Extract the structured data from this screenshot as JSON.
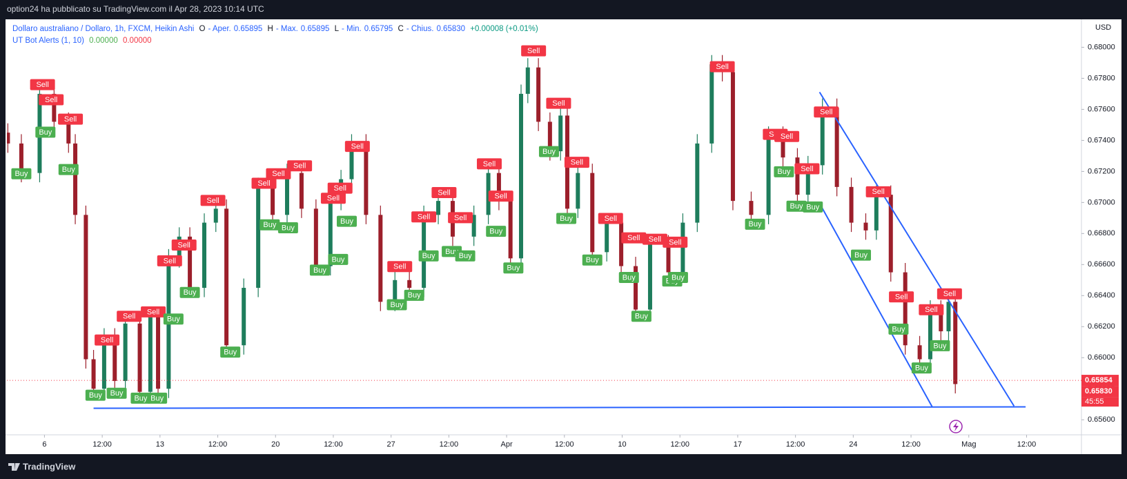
{
  "header": {
    "text": "option24 ha pubblicato su TradingView.com il Apr 28, 2023 10:14 UTC"
  },
  "legend": {
    "symbol": "Dollaro australiano / Dollaro, 1h, FXCM, Heikin Ashi",
    "ohlc": [
      {
        "key": "O",
        "name": "- Aper.",
        "value": "0.65895"
      },
      {
        "key": "H",
        "name": "- Max.",
        "value": "0.65895"
      },
      {
        "key": "L",
        "name": "- Min.",
        "value": "0.65795"
      },
      {
        "key": "C",
        "name": "- Chius.",
        "value": "0.65830"
      }
    ],
    "change": "+0.00008 (+0.01%)"
  },
  "indicator": {
    "name": "UT Bot Alerts (1, 10)",
    "values": [
      "0.00000",
      "0.00000"
    ]
  },
  "footer": {
    "brand": "TradingView"
  },
  "chart_data": {
    "type": "candlestick",
    "currency": "USD",
    "up_color": "#1e7d5c",
    "down_color": "#9c1f2b",
    "grid": false,
    "xlim": [
      -39,
      1077
    ],
    "ylim": [
      0.65503,
      0.6818
    ],
    "xticks": [
      {
        "value": 0,
        "label": "6"
      },
      {
        "value": 60,
        "label": "12:00"
      },
      {
        "value": 120,
        "label": "13"
      },
      {
        "value": 180,
        "label": "12:00"
      },
      {
        "value": 240,
        "label": "20"
      },
      {
        "value": 300,
        "label": "12:00"
      },
      {
        "value": 360,
        "label": "27"
      },
      {
        "value": 420,
        "label": "12:00"
      },
      {
        "value": 480,
        "label": "Apr"
      },
      {
        "value": 540,
        "label": "12:00"
      },
      {
        "value": 600,
        "label": "10"
      },
      {
        "value": 660,
        "label": "12:00"
      },
      {
        "value": 720,
        "label": "17"
      },
      {
        "value": 780,
        "label": "12:00"
      },
      {
        "value": 840,
        "label": "24"
      },
      {
        "value": 900,
        "label": "12:00"
      },
      {
        "value": 960,
        "label": "Mag"
      },
      {
        "value": 1020,
        "label": "12:00"
      }
    ],
    "yticks": [
      {
        "value": 0.656,
        "label": "0.65600"
      },
      {
        "value": 0.658,
        "label": "0.65800"
      },
      {
        "value": 0.66,
        "label": "0.66000"
      },
      {
        "value": 0.662,
        "label": "0.66200"
      },
      {
        "value": 0.664,
        "label": "0.66400"
      },
      {
        "value": 0.666,
        "label": "0.66600"
      },
      {
        "value": 0.668,
        "label": "0.66800"
      },
      {
        "value": 0.67,
        "label": "0.67000"
      },
      {
        "value": 0.672,
        "label": "0.67200"
      },
      {
        "value": 0.674,
        "label": "0.67400"
      },
      {
        "value": 0.676,
        "label": "0.67600"
      },
      {
        "value": 0.678,
        "label": "0.67800"
      },
      {
        "value": 0.68,
        "label": "0.68000"
      }
    ],
    "x": [
      -38,
      -24,
      -5,
      10,
      25,
      32,
      43,
      51,
      62,
      73,
      84,
      99,
      110,
      118,
      129,
      140,
      151,
      166,
      178,
      189,
      207,
      222,
      237,
      252,
      267,
      282,
      297,
      308,
      319,
      334,
      349,
      364,
      379,
      394,
      409,
      424,
      446,
      461,
      472,
      484,
      495,
      502,
      513,
      525,
      536,
      543,
      554,
      569,
      584,
      599,
      614,
      629,
      648,
      663,
      678,
      693,
      704,
      715,
      734,
      752,
      767,
      782,
      793,
      808,
      823,
      838,
      853,
      864,
      879,
      894,
      909,
      920,
      931,
      939,
      946
    ],
    "open": [
      0.6745,
      0.6738,
      0.6719,
      0.677,
      0.6752,
      0.6738,
      0.6692,
      0.6599,
      0.658,
      0.6613,
      0.6585,
      0.6622,
      0.6578,
      0.6627,
      0.658,
      0.6664,
      0.6678,
      0.6645,
      0.6687,
      0.6696,
      0.6608,
      0.6645,
      0.671,
      0.6692,
      0.6719,
      0.6696,
      0.6659,
      0.6701,
      0.6715,
      0.6738,
      0.6692,
      0.6636,
      0.665,
      0.6645,
      0.6692,
      0.6701,
      0.6678,
      0.6692,
      0.6719,
      0.6701,
      0.6664,
      0.677,
      0.6787,
      0.6752,
      0.6733,
      0.6756,
      0.6696,
      0.6719,
      0.6668,
      0.6687,
      0.6659,
      0.6631,
      0.6673,
      0.6655,
      0.6687,
      0.6738,
      0.6789,
      0.6784,
      0.6701,
      0.6692,
      0.6743,
      0.6729,
      0.6705,
      0.6724,
      0.6761,
      0.671,
      0.6687,
      0.6682,
      0.6705,
      0.6655,
      0.6608,
      0.6599,
      0.6631,
      0.6617,
      0.6636
    ],
    "high": [
      0.6751,
      0.6744,
      0.6776,
      0.6776,
      0.6758,
      0.6744,
      0.6698,
      0.6605,
      0.6619,
      0.6619,
      0.6628,
      0.6628,
      0.6633,
      0.6633,
      0.667,
      0.6684,
      0.6684,
      0.6693,
      0.6702,
      0.6702,
      0.6651,
      0.6716,
      0.6716,
      0.6725,
      0.6725,
      0.6702,
      0.6707,
      0.6721,
      0.6744,
      0.6744,
      0.6698,
      0.6656,
      0.6656,
      0.6698,
      0.6707,
      0.6707,
      0.6698,
      0.6725,
      0.6725,
      0.6707,
      0.6776,
      0.6793,
      0.6793,
      0.6758,
      0.6762,
      0.6762,
      0.6725,
      0.6725,
      0.6693,
      0.6693,
      0.6665,
      0.6679,
      0.6679,
      0.6693,
      0.6744,
      0.6795,
      0.6795,
      0.679,
      0.6707,
      0.6749,
      0.6749,
      0.6735,
      0.673,
      0.6767,
      0.6767,
      0.6716,
      0.6693,
      0.6711,
      0.6711,
      0.6661,
      0.6614,
      0.6637,
      0.6637,
      0.6642,
      0.6642
    ],
    "low": [
      0.6732,
      0.6713,
      0.6713,
      0.6746,
      0.6732,
      0.6686,
      0.6593,
      0.6574,
      0.6574,
      0.6579,
      0.6579,
      0.6572,
      0.6572,
      0.6574,
      0.6574,
      0.6658,
      0.6639,
      0.6639,
      0.6681,
      0.6602,
      0.6602,
      0.6639,
      0.6686,
      0.6686,
      0.669,
      0.6653,
      0.6653,
      0.6695,
      0.6709,
      0.6686,
      0.663,
      0.663,
      0.6639,
      0.6639,
      0.6686,
      0.6672,
      0.6672,
      0.6686,
      0.6695,
      0.6658,
      0.6658,
      0.6764,
      0.6746,
      0.6727,
      0.6727,
      0.669,
      0.669,
      0.6662,
      0.6662,
      0.6653,
      0.6625,
      0.6625,
      0.6649,
      0.6649,
      0.6681,
      0.6732,
      0.6778,
      0.6695,
      0.6686,
      0.6686,
      0.6723,
      0.6699,
      0.6699,
      0.6718,
      0.6704,
      0.6681,
      0.6676,
      0.6676,
      0.6649,
      0.6602,
      0.6593,
      0.6593,
      0.6611,
      0.6611,
      0.6577
    ],
    "close": [
      0.6738,
      0.6719,
      0.677,
      0.6752,
      0.6738,
      0.6692,
      0.6599,
      0.658,
      0.6613,
      0.6585,
      0.6622,
      0.6578,
      0.6627,
      0.658,
      0.6664,
      0.6678,
      0.6645,
      0.6687,
      0.6696,
      0.6608,
      0.6645,
      0.671,
      0.6692,
      0.6719,
      0.6696,
      0.6659,
      0.6701,
      0.6715,
      0.6738,
      0.6692,
      0.6636,
      0.665,
      0.6645,
      0.6692,
      0.6701,
      0.6678,
      0.6692,
      0.6719,
      0.6701,
      0.6664,
      0.677,
      0.6787,
      0.6752,
      0.6733,
      0.6756,
      0.6696,
      0.6719,
      0.6668,
      0.6687,
      0.6659,
      0.6631,
      0.6673,
      0.6655,
      0.6687,
      0.6738,
      0.6789,
      0.6784,
      0.6701,
      0.6692,
      0.6743,
      0.6729,
      0.6705,
      0.6724,
      0.6761,
      0.671,
      0.6687,
      0.6682,
      0.6705,
      0.6655,
      0.6608,
      0.6599,
      0.6631,
      0.6617,
      0.6636,
      0.6583
    ],
    "signals": [
      {
        "name": "Sell",
        "color": "#f23645",
        "x": [
          -2,
          7,
          27,
          65,
          88,
          113,
          130,
          145,
          175,
          228,
          243,
          265,
          300,
          307,
          325,
          369,
          394,
          415,
          432,
          462,
          474,
          508,
          534,
          553,
          588,
          612,
          634,
          655,
          704,
          759,
          771,
          792,
          812,
          866,
          890,
          921,
          940
        ],
        "y": [
          0.67759,
          0.67662,
          0.67537,
          0.66114,
          0.66267,
          0.66295,
          0.66624,
          0.66726,
          0.67013,
          0.67124,
          0.67185,
          0.67236,
          0.67027,
          0.67092,
          0.67361,
          0.66587,
          0.66907,
          0.67064,
          0.66902,
          0.67249,
          0.67041,
          0.67977,
          0.67639,
          0.67259,
          0.66897,
          0.66772,
          0.66763,
          0.66744,
          0.67875,
          0.67439,
          0.67425,
          0.67217,
          0.67583,
          0.67069,
          0.66392,
          0.66309,
          0.66411
        ]
      },
      {
        "name": "Buy",
        "color": "#4caf50",
        "x": [
          -24,
          1,
          25,
          53,
          75,
          100,
          117,
          134,
          151,
          193,
          234,
          253,
          286,
          305,
          314,
          366,
          384,
          399,
          423,
          437,
          469,
          487,
          524,
          542,
          569,
          607,
          620,
          652,
          658,
          738,
          768,
          781,
          798,
          848,
          887,
          911,
          930
        ],
        "y": [
          0.67185,
          0.67453,
          0.67212,
          0.65758,
          0.65771,
          0.65739,
          0.65739,
          0.66249,
          0.6642,
          0.66036,
          0.66856,
          0.66837,
          0.66564,
          0.66633,
          0.66879,
          0.66341,
          0.66402,
          0.66656,
          0.66684,
          0.66656,
          0.66814,
          0.66578,
          0.67328,
          0.66897,
          0.66629,
          0.66517,
          0.66267,
          0.66494,
          0.66517,
          0.6686,
          0.67198,
          0.66976,
          0.66971,
          0.66661,
          0.66184,
          0.65934,
          0.66077
        ]
      }
    ],
    "trendlines": {
      "color": "#2962ff",
      "lines": [
        {
          "x": [
            51,
            1019
          ],
          "y": [
            0.65674,
            0.65683
          ]
        },
        {
          "x": [
            805,
            1007
          ],
          "y": [
            0.67711,
            0.65688
          ]
        },
        {
          "x": [
            805,
            922
          ],
          "y": [
            0.66995,
            0.65683
          ]
        }
      ]
    },
    "price_tags": [
      0.65854,
      {
        "value": 0.6583,
        "label": "0.65830"
      }
    ],
    "tag_color": "#f23645",
    "countdown": "45:55"
  }
}
